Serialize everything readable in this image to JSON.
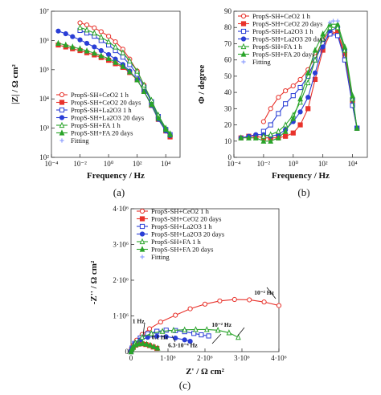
{
  "chart_data": [
    {
      "id": "a",
      "type": "line",
      "panel_label": "(a)",
      "xlabel": "Frequency / Hz",
      "ylabel": "|Z| / Ω cm²",
      "x_scale": "log",
      "y_scale": "log",
      "xlim": [
        0.0001,
        100000
      ],
      "ylim": [
        100,
        10000000
      ],
      "x_tick_labels": [
        "10⁻⁴",
        "10⁻²",
        "10⁰",
        "10²",
        "10⁴"
      ],
      "x_tick_values": [
        0.0001,
        0.01,
        1,
        100,
        10000
      ],
      "y_tick_labels": [
        "10²",
        "10³",
        "10⁴",
        "10⁵",
        "10⁶",
        "10⁷"
      ],
      "y_tick_values": [
        100,
        1000,
        10000,
        100000,
        1000000,
        10000000
      ],
      "legend_position": "bottom-left",
      "legend": [
        "PropS-SH+CeO2 1 h",
        "PropS-SH+CeO2 20 days",
        "PropS-SH+La2O3 1 h",
        "PropS-SH+La2O3 20 days",
        "PropS-SH+FA 1 h",
        "PropS-SH+FA 20 days",
        "Fitting"
      ],
      "series": [
        {
          "name": "PropS-SH+CeO2 1 h",
          "color": "#e8322b",
          "marker": "open-circle",
          "x": [
            0.01,
            0.03,
            0.1,
            0.3,
            1,
            3,
            10,
            30,
            100,
            300,
            1000,
            3000,
            10000,
            20000
          ],
          "y": [
            4000000,
            3400000,
            2700000,
            2000000,
            1400000,
            900000,
            500000,
            230000,
            90000,
            30000,
            8000,
            2500,
            900,
            550
          ]
        },
        {
          "name": "PropS-SH+CeO2 20 days",
          "color": "#e8322b",
          "marker": "filled-square",
          "x": [
            0.0003,
            0.001,
            0.003,
            0.01,
            0.03,
            0.1,
            0.3,
            1,
            3,
            10,
            30,
            100,
            300,
            1000,
            3000,
            10000,
            20000
          ],
          "y": [
            700000,
            600000,
            520000,
            450000,
            380000,
            320000,
            260000,
            210000,
            160000,
            120000,
            80000,
            45000,
            18000,
            6000,
            2000,
            800,
            500
          ]
        },
        {
          "name": "PropS-SH+La2O3 1 h",
          "color": "#2a3ed6",
          "marker": "open-square",
          "x": [
            0.01,
            0.03,
            0.1,
            0.3,
            1,
            3,
            10,
            30,
            100,
            300,
            1000,
            3000,
            10000,
            20000
          ],
          "y": [
            2200000,
            1800000,
            1400000,
            1000000,
            700000,
            450000,
            270000,
            150000,
            70000,
            25000,
            8000,
            2500,
            900,
            600
          ]
        },
        {
          "name": "PropS-SH+La2O3 20 days",
          "color": "#2a3ed6",
          "marker": "filled-circle",
          "x": [
            0.0003,
            0.001,
            0.003,
            0.01,
            0.03,
            0.1,
            0.3,
            1,
            3,
            10,
            30,
            100,
            300,
            1000,
            3000,
            10000,
            20000
          ],
          "y": [
            2100000,
            1700000,
            1350000,
            1050000,
            800000,
            600000,
            450000,
            330000,
            230000,
            150000,
            90000,
            45000,
            18000,
            6000,
            2000,
            800,
            550
          ]
        },
        {
          "name": "PropS-SH+FA 1 h",
          "color": "#2aa42a",
          "marker": "open-triangle",
          "x": [
            0.01,
            0.03,
            0.1,
            0.3,
            1,
            3,
            10,
            30,
            100,
            300,
            1000,
            3000,
            10000,
            20000
          ],
          "y": [
            2800000,
            2300000,
            1800000,
            1300000,
            900000,
            600000,
            380000,
            200000,
            90000,
            30000,
            9000,
            2800,
            1000,
            650
          ]
        },
        {
          "name": "PropS-SH+FA 20 days",
          "color": "#2aa42a",
          "marker": "filled-triangle",
          "x": [
            0.0003,
            0.001,
            0.003,
            0.01,
            0.03,
            0.1,
            0.3,
            1,
            3,
            10,
            30,
            100,
            300,
            1000,
            3000,
            10000,
            20000
          ],
          "y": [
            800000,
            700000,
            600000,
            520000,
            440000,
            370000,
            300000,
            240000,
            180000,
            130000,
            85000,
            45000,
            18000,
            6500,
            2200,
            900,
            600
          ]
        }
      ]
    },
    {
      "id": "b",
      "type": "line",
      "panel_label": "(b)",
      "xlabel": "Frequency / Hz",
      "ylabel": "Φ / degree",
      "x_scale": "log",
      "y_scale": "linear",
      "xlim": [
        0.0001,
        100000
      ],
      "ylim": [
        0,
        90
      ],
      "x_tick_labels": [
        "10⁻⁴",
        "10⁻²",
        "10⁰",
        "10²",
        "10⁴"
      ],
      "x_tick_values": [
        0.0001,
        0.01,
        1,
        100,
        10000
      ],
      "y_tick_labels": [
        "0",
        "10",
        "20",
        "30",
        "40",
        "50",
        "60",
        "70",
        "80",
        "90"
      ],
      "y_tick_values": [
        0,
        10,
        20,
        30,
        40,
        50,
        60,
        70,
        80,
        90
      ],
      "legend_position": "top-left",
      "legend": [
        "PropS-SH+CeO2 1 h",
        "PropS-SH+CeO2 20 days",
        "PropS-SH+La2O3 1 h",
        "PropS-SH+La2O3 20 days",
        "PropS-SH+FA 1 h",
        "PropS-SH+FA 20 days",
        "Fitting"
      ],
      "series": [
        {
          "name": "PropS-SH+CeO2 1 h",
          "color": "#e8322b",
          "marker": "open-circle",
          "x": [
            0.01,
            0.03,
            0.1,
            0.3,
            1,
            3,
            10,
            30,
            100,
            300,
            1000,
            3000,
            10000,
            20000
          ],
          "y": [
            22,
            30,
            37,
            41,
            44,
            48,
            54,
            62,
            72,
            78,
            76,
            62,
            32,
            18
          ]
        },
        {
          "name": "PropS-SH+CeO2 20 days",
          "color": "#e8322b",
          "marker": "filled-square",
          "x": [
            0.0003,
            0.001,
            0.003,
            0.01,
            0.03,
            0.1,
            0.3,
            1,
            3,
            10,
            30,
            100,
            300,
            1000,
            3000,
            10000,
            20000
          ],
          "y": [
            12,
            13,
            13,
            12,
            12,
            12,
            13,
            15,
            20,
            30,
            48,
            66,
            76,
            77,
            64,
            35,
            18
          ]
        },
        {
          "name": "PropS-SH+La2O3 1 h",
          "color": "#2a3ed6",
          "marker": "open-square",
          "x": [
            0.01,
            0.03,
            0.1,
            0.3,
            1,
            3,
            10,
            30,
            100,
            300,
            1000,
            3000,
            10000,
            20000
          ],
          "y": [
            16,
            20,
            27,
            33,
            38,
            43,
            50,
            60,
            70,
            76,
            75,
            60,
            32,
            18
          ]
        },
        {
          "name": "PropS-SH+La2O3 20 days",
          "color": "#2a3ed6",
          "marker": "filled-circle",
          "x": [
            0.0003,
            0.001,
            0.003,
            0.01,
            0.03,
            0.1,
            0.3,
            1,
            3,
            10,
            30,
            100,
            300,
            1000,
            3000,
            10000,
            20000
          ],
          "y": [
            12,
            13,
            14,
            14,
            13,
            14,
            17,
            22,
            28,
            37,
            52,
            68,
            78,
            80,
            66,
            36,
            18
          ]
        },
        {
          "name": "PropS-SH+FA 1 h",
          "color": "#2aa42a",
          "marker": "open-triangle",
          "x": [
            0.01,
            0.03,
            0.1,
            0.3,
            1,
            3,
            10,
            30,
            100,
            300,
            1000,
            3000,
            10000,
            20000
          ],
          "y": [
            13,
            14,
            16,
            20,
            26,
            34,
            46,
            60,
            73,
            80,
            80,
            66,
            36,
            18
          ]
        },
        {
          "name": "PropS-SH+FA 20 days",
          "color": "#2aa42a",
          "marker": "filled-triangle",
          "x": [
            0.0003,
            0.001,
            0.003,
            0.01,
            0.03,
            0.1,
            0.3,
            1,
            3,
            10,
            30,
            100,
            300,
            1000,
            3000,
            10000,
            20000
          ],
          "y": [
            12,
            12,
            12,
            10,
            10,
            12,
            16,
            24,
            36,
            52,
            66,
            76,
            82,
            82,
            68,
            38,
            18
          ]
        },
        {
          "name": "Fitting",
          "color": "#8fa0ff",
          "marker": "plus",
          "x": [
            300,
            500,
            1000
          ],
          "y": [
            83,
            84,
            84
          ]
        }
      ]
    },
    {
      "id": "c",
      "type": "scatter",
      "panel_label": "(c)",
      "xlabel": "Z' / Ω cm²",
      "ylabel": "-Z'' / Ω cm²",
      "xlim": [
        0,
        4000000
      ],
      "ylim": [
        0,
        4000000
      ],
      "x_tick_labels": [
        "0",
        "1·10⁶",
        "2·10⁶",
        "3·10⁶",
        "4·10⁶"
      ],
      "x_tick_values": [
        0,
        1000000,
        2000000,
        3000000,
        4000000
      ],
      "y_tick_labels": [
        "0",
        "1·10⁶",
        "2·10⁶",
        "3·10⁶",
        "4·10⁶"
      ],
      "y_tick_values": [
        0,
        1000000,
        2000000,
        3000000,
        4000000
      ],
      "legend_position": "top-left",
      "legend": [
        "PropS-SH+CeO2 1 h",
        "PropS-SH+CeO2 20 days",
        "PropS-SH+La2O3 1 h",
        "PropS-SH+La2O3 20 days",
        "PropS-SH+FA 1 h",
        "PropS-SH+FA 20 days",
        "Fitting"
      ],
      "annotations": [
        {
          "text": "10⁻² Hz",
          "x": 3600000,
          "y": 1600000
        },
        {
          "text": "1 Hz",
          "x": 200000,
          "y": 800000
        },
        {
          "text": "10⁻² Hz",
          "x": 2450000,
          "y": 700000
        },
        {
          "text": "0.1 Hz",
          "x": 780000,
          "y": 350000
        },
        {
          "text": "6.3·10⁻⁴ Hz",
          "x": 1400000,
          "y": 120000
        }
      ],
      "series": [
        {
          "name": "PropS-SH+CeO2 1 h",
          "color": "#e8322b",
          "marker": "open-circle",
          "x": [
            0,
            20000,
            60000,
            150000,
            300000,
            500000,
            800000,
            1200000,
            1600000,
            2000000,
            2400000,
            2800000,
            3200000,
            3600000,
            4000000
          ],
          "y": [
            0,
            80000,
            180000,
            320000,
            480000,
            640000,
            830000,
            1020000,
            1200000,
            1330000,
            1420000,
            1460000,
            1450000,
            1390000,
            1290000
          ]
        },
        {
          "name": "PropS-SH+CeO2 20 days",
          "color": "#e8322b",
          "marker": "filled-square",
          "x": [
            0,
            20000,
            60000,
            120000,
            200000,
            300000,
            400000,
            500000,
            600000,
            700000
          ],
          "y": [
            0,
            60000,
            120000,
            180000,
            210000,
            220000,
            200000,
            170000,
            130000,
            90000
          ]
        },
        {
          "name": "PropS-SH+La2O3 1 h",
          "color": "#2a3ed6",
          "marker": "open-square",
          "x": [
            0,
            30000,
            100000,
            250000,
            450000,
            700000,
            950000,
            1200000,
            1450000,
            1700000,
            1900000,
            2100000
          ],
          "y": [
            0,
            100000,
            230000,
            380000,
            500000,
            570000,
            600000,
            590000,
            560000,
            510000,
            470000,
            440000
          ]
        },
        {
          "name": "PropS-SH+La2O3 20 days",
          "color": "#2a3ed6",
          "marker": "filled-circle",
          "x": [
            0,
            30000,
            100000,
            250000,
            450000,
            700000,
            950000,
            1200000,
            1450000,
            1600000
          ],
          "y": [
            0,
            90000,
            210000,
            330000,
            400000,
            430000,
            420000,
            380000,
            330000,
            290000
          ]
        },
        {
          "name": "PropS-SH+FA 1 h",
          "color": "#2aa42a",
          "marker": "open-triangle",
          "x": [
            0,
            30000,
            120000,
            300000,
            550000,
            850000,
            1150000,
            1450000,
            1750000,
            2050000,
            2350000,
            2650000,
            2900000
          ],
          "y": [
            0,
            100000,
            250000,
            400000,
            510000,
            570000,
            600000,
            610000,
            620000,
            620000,
            600000,
            530000,
            400000
          ]
        },
        {
          "name": "PropS-SH+FA 20 days",
          "color": "#2aa42a",
          "marker": "filled-triangle",
          "x": [
            0,
            20000,
            60000,
            130000,
            220000,
            320000,
            420000,
            520000,
            620000,
            720000
          ],
          "y": [
            0,
            60000,
            130000,
            190000,
            220000,
            230000,
            210000,
            180000,
            140000,
            100000
          ]
        }
      ]
    }
  ]
}
